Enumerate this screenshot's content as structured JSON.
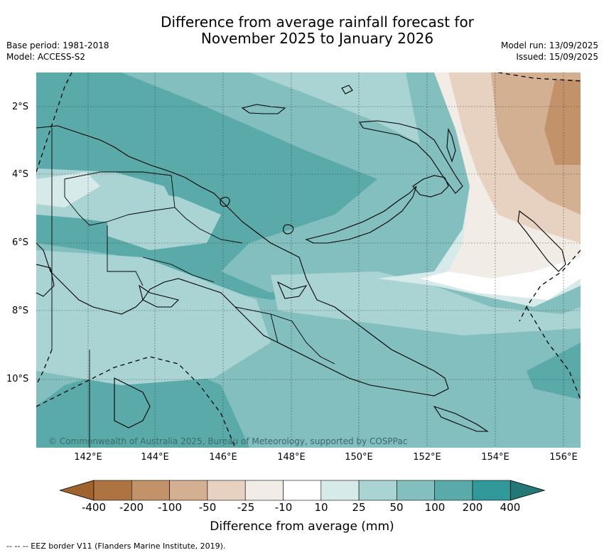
{
  "title_line1": "Difference from average rainfall forecast for",
  "title_line2": "November 2025 to January 2026",
  "base_period": "Base period: 1981-2018",
  "model": "Model: ACCESS-S2",
  "model_run": "Model run: 13/09/2025",
  "issued": "Issued: 15/09/2025",
  "copyright": "© Commonwealth of Australia 2025, Bureau of Meteorology, supported by COSPPac",
  "lat_labels": [
    "2°S",
    "4°S",
    "6°S",
    "8°S",
    "10°S"
  ],
  "lon_labels": [
    "142°E",
    "144°E",
    "146°E",
    "148°E",
    "150°E",
    "152°E",
    "154°E",
    "156°E"
  ],
  "colorbar": {
    "ticks": [
      "-400",
      "-200",
      "-100",
      "-50",
      "-25",
      "-10",
      "10",
      "25",
      "50",
      "100",
      "200",
      "400"
    ],
    "colors": [
      "#a0622e",
      "#ad7340",
      "#c2926a",
      "#d4b092",
      "#e7d2c2",
      "#f2ece7",
      "#ffffff",
      "#d6eae9",
      "#a9d4d3",
      "#82bfbe",
      "#5aaaaa",
      "#31999a",
      "#257777"
    ],
    "title": "Difference from average (mm)"
  },
  "legend_text": "--  --  -- EEZ border V11 (Flanders Marine Institute, 2019)."
}
